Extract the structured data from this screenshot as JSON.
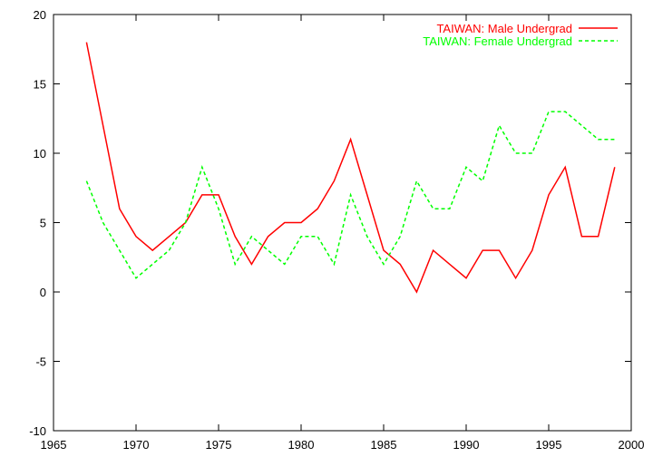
{
  "chart_data": {
    "type": "line",
    "title": "",
    "xlabel": "",
    "ylabel": "",
    "xlim": [
      1965,
      2000
    ],
    "ylim": [
      -10,
      20
    ],
    "xticks": [
      1965,
      1970,
      1975,
      1980,
      1985,
      1990,
      1995,
      2000
    ],
    "yticks": [
      -10,
      -5,
      0,
      5,
      10,
      15,
      20
    ],
    "grid": false,
    "legend_position": "top-right",
    "series": [
      {
        "name": "TAIWAN: Male Undergrad",
        "color": "#ff0000",
        "style": "solid",
        "x": [
          1967,
          1968,
          1969,
          1970,
          1971,
          1972,
          1973,
          1974,
          1975,
          1976,
          1977,
          1978,
          1979,
          1980,
          1981,
          1982,
          1983,
          1984,
          1985,
          1986,
          1987,
          1988,
          1989,
          1990,
          1991,
          1992,
          1993,
          1994,
          1995,
          1996,
          1997,
          1998,
          1999
        ],
        "y": [
          18,
          12,
          6,
          4,
          3,
          4,
          5,
          7,
          7,
          4,
          2,
          4,
          5,
          5,
          6,
          8,
          11,
          7,
          3,
          2,
          0,
          3,
          2,
          1,
          3,
          3,
          1,
          3,
          7,
          9,
          4,
          4,
          9
        ]
      },
      {
        "name": "TAIWAN: Female Undergrad",
        "color": "#00ff00",
        "style": "dashed",
        "x": [
          1967,
          1968,
          1969,
          1970,
          1971,
          1972,
          1973,
          1974,
          1975,
          1976,
          1977,
          1978,
          1979,
          1980,
          1981,
          1982,
          1983,
          1984,
          1985,
          1986,
          1987,
          1988,
          1989,
          1990,
          1991,
          1992,
          1993,
          1994,
          1995,
          1996,
          1997,
          1998,
          1999
        ],
        "y": [
          8,
          5,
          3,
          1,
          2,
          3,
          5,
          9,
          6,
          2,
          4,
          3,
          2,
          4,
          4,
          2,
          7,
          4,
          2,
          4,
          8,
          6,
          6,
          9,
          8,
          12,
          10,
          10,
          13,
          13,
          12,
          11,
          11
        ]
      }
    ]
  }
}
